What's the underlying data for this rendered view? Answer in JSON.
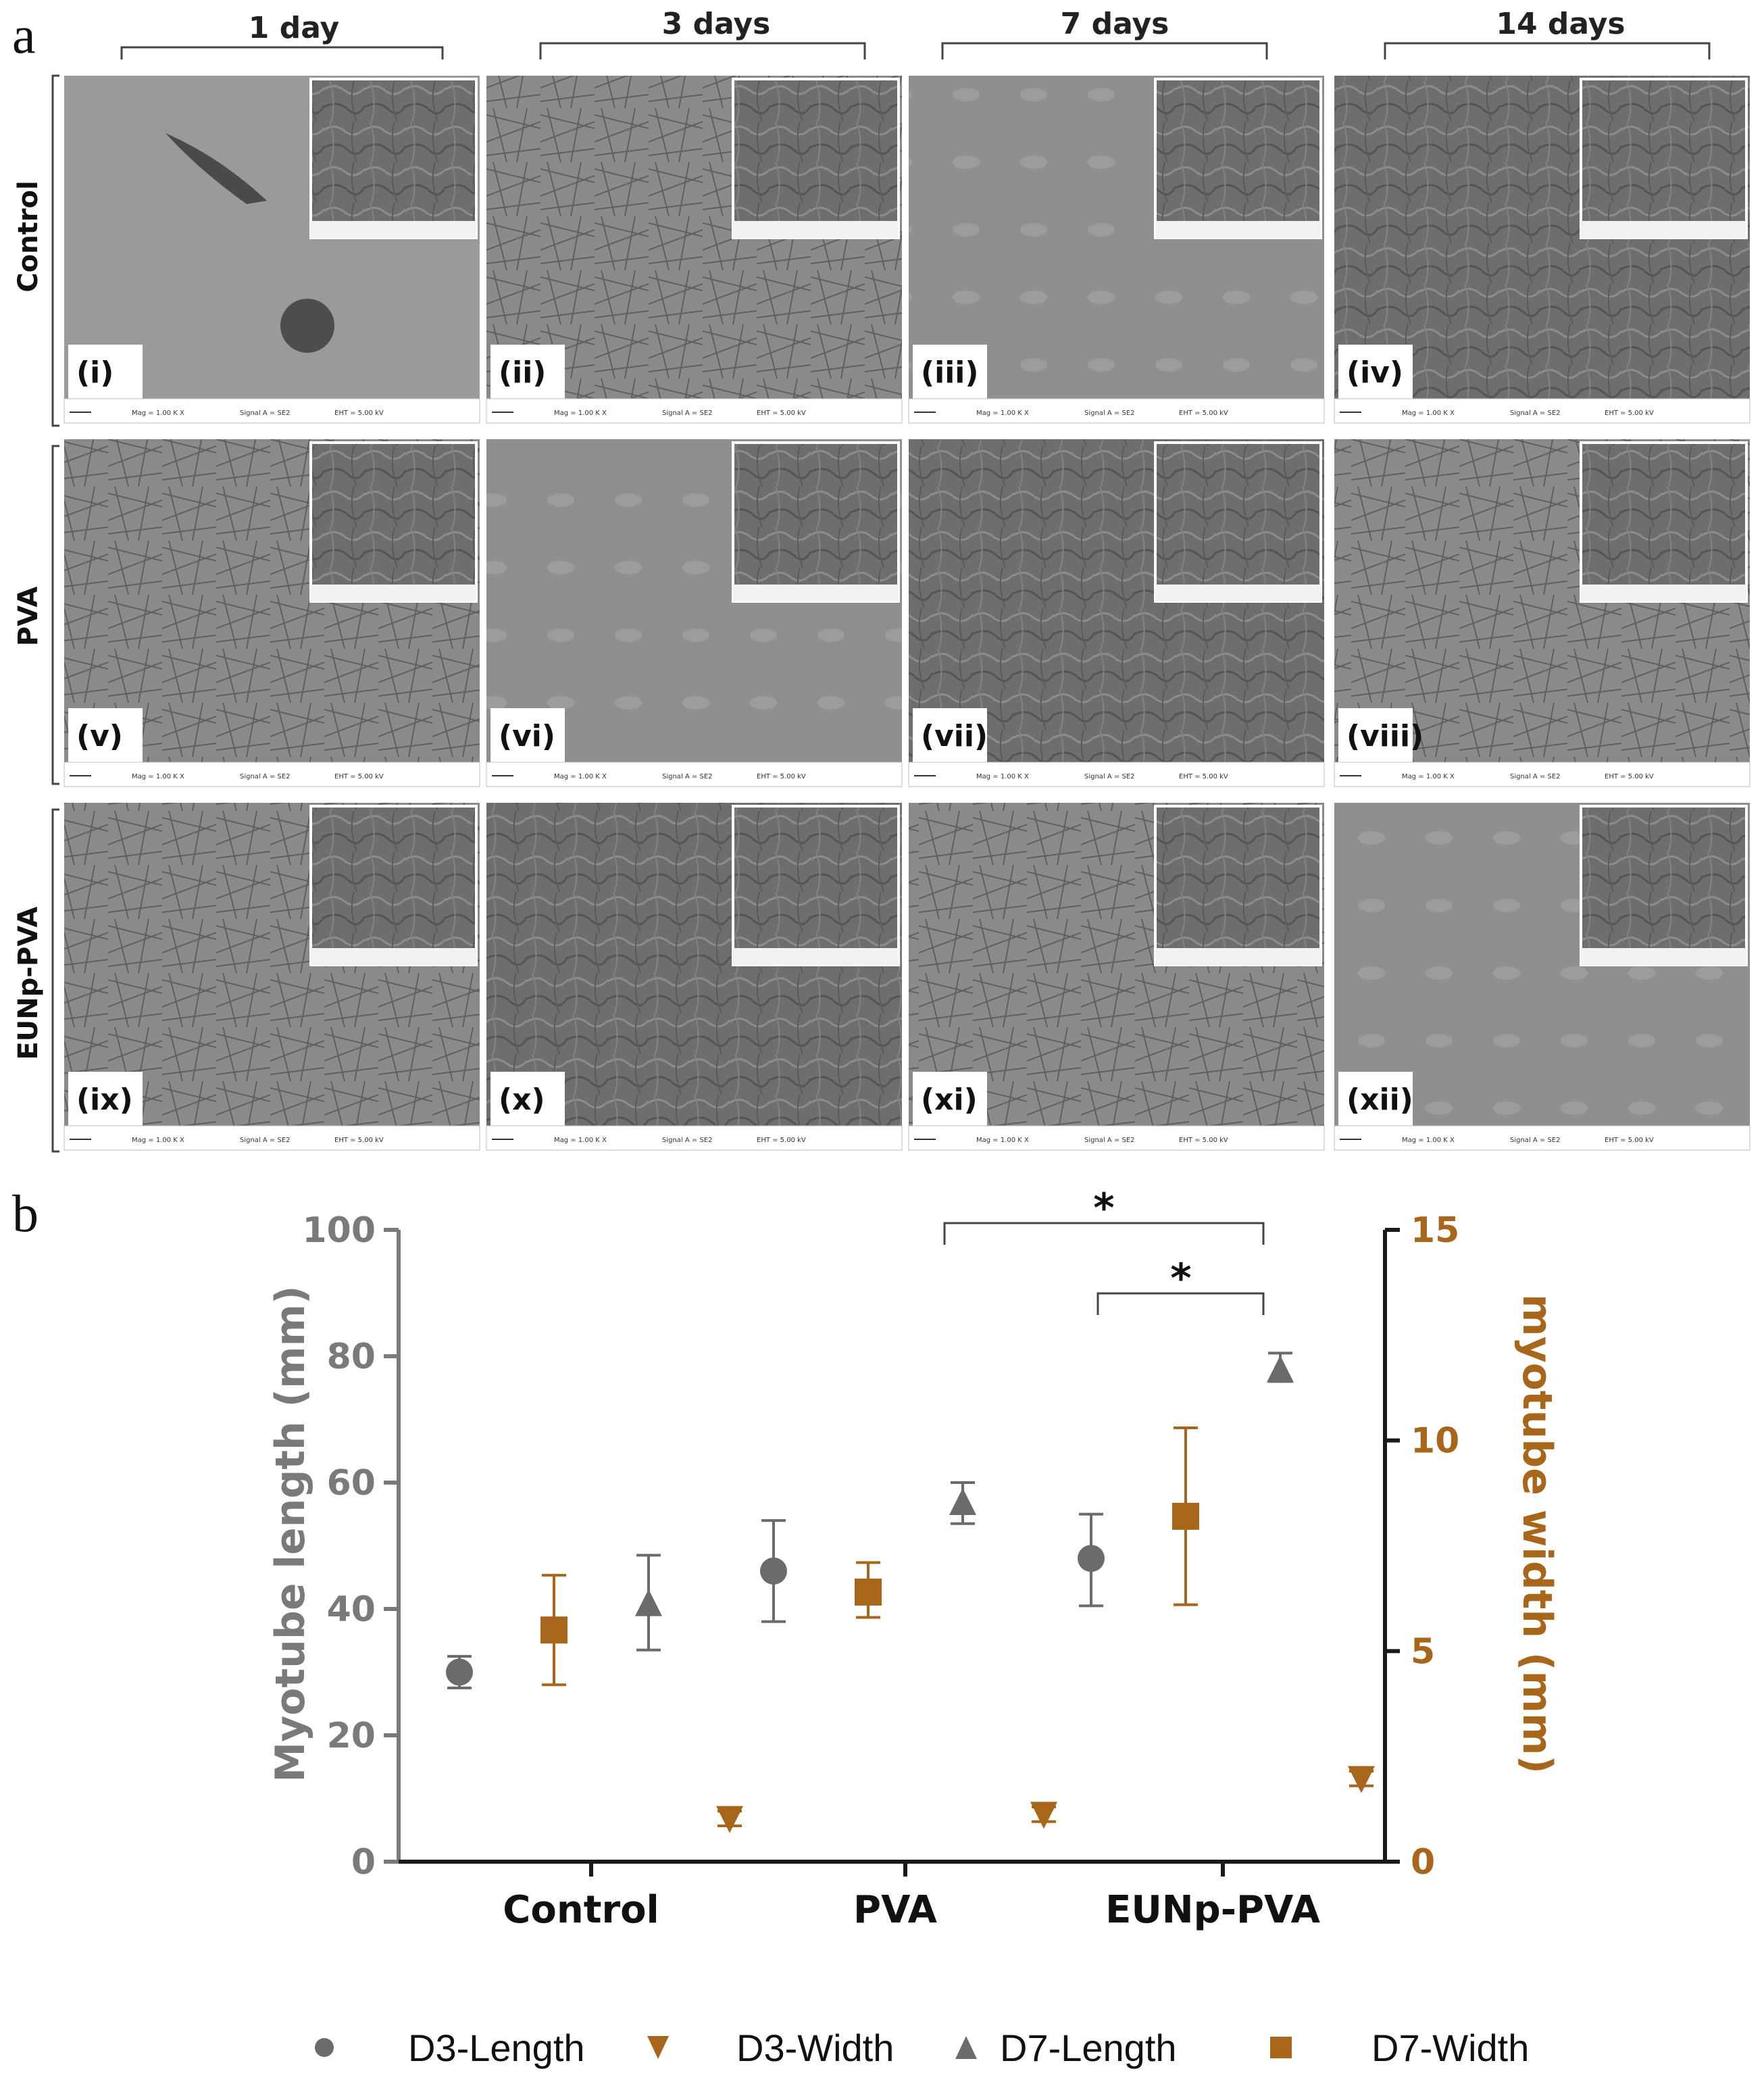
{
  "panel_a": {
    "letter": "a",
    "timepoints": [
      "1 day",
      "3 days",
      "7 days",
      "14 days"
    ],
    "rows": [
      "Control",
      "PVA",
      "EUNp-PVA"
    ],
    "panels": [
      [
        "(i)",
        "(ii)",
        "(iii)",
        "(iv)"
      ],
      [
        "(v)",
        "(vi)",
        "(vii)",
        "(viii)"
      ],
      [
        "(ix)",
        "(x)",
        "(xi)",
        "(xii)"
      ]
    ],
    "sem_meta": {
      "mag": "Mag = 1.00 K X",
      "signal": "Signal A = SE2",
      "eht": "EHT = 5.00 kV"
    }
  },
  "panel_b": {
    "letter": "b"
  },
  "chart_data": {
    "type": "scatter",
    "title": "",
    "categories": [
      "Control",
      "PVA",
      "EUNp-PVA"
    ],
    "ylabel": "Myotube length (mm)",
    "ylabel_right": "myotube width (mm)",
    "ylim": [
      0,
      100
    ],
    "ylim_right": [
      0,
      15
    ],
    "yticks": [
      0,
      20,
      40,
      60,
      80,
      100
    ],
    "yticks_right": [
      0,
      5,
      10,
      15
    ],
    "series": [
      {
        "name": "D3-Length",
        "axis": "left",
        "marker": "circle",
        "color": "#6b6b6b",
        "values": [
          30,
          46,
          48
        ],
        "err_low": [
          27.5,
          38,
          40.5
        ],
        "err_high": [
          32.5,
          54,
          55
        ]
      },
      {
        "name": "D3-Width",
        "axis": "right",
        "marker": "triangle-down",
        "color": "#a8661a",
        "values": [
          1.0,
          1.1,
          1.95
        ],
        "err_low": [
          0.85,
          0.95,
          1.8
        ],
        "err_high": [
          1.2,
          1.3,
          2.15
        ]
      },
      {
        "name": "D7-Length",
        "axis": "left",
        "marker": "triangle-up",
        "color": "#6b6b6b",
        "values": [
          41,
          57,
          78
        ],
        "err_low": [
          33.5,
          53.5,
          76
        ],
        "err_high": [
          48.5,
          60,
          80.5
        ]
      },
      {
        "name": "D7-Width",
        "axis": "right",
        "marker": "square",
        "color": "#a8661a",
        "values": [
          5.5,
          6.4,
          8.2
        ],
        "err_low": [
          4.2,
          5.8,
          6.1
        ],
        "err_high": [
          6.8,
          7.1,
          10.3
        ]
      }
    ],
    "annotations": [
      {
        "text": "*",
        "from": "PVA D7-Length",
        "to": "EUNp-PVA D7-Length"
      },
      {
        "text": "*",
        "from": "EUNp-PVA D3-Length",
        "to": "EUNp-PVA D7-Length"
      }
    ],
    "legend_position": "bottom"
  }
}
